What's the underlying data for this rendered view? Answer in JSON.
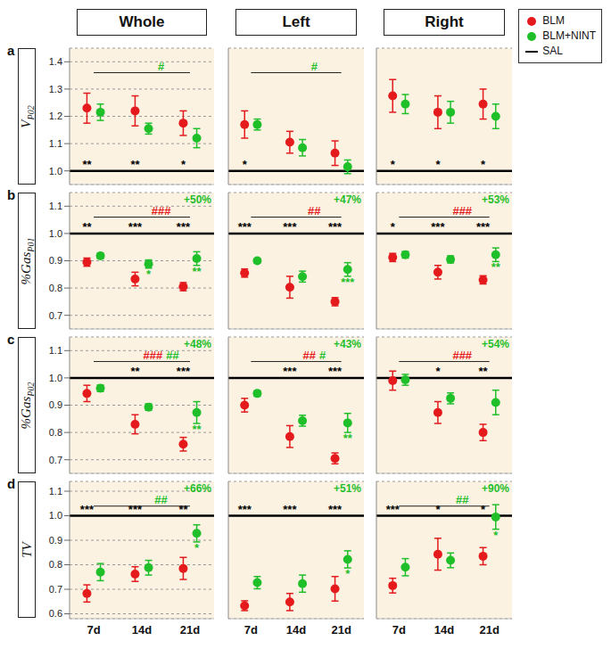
{
  "column_titles": [
    "Whole",
    "Left",
    "Right"
  ],
  "legend": "top right",
  "rows": [
    {
      "label": "a",
      "ylabel": "V",
      "ylabel_sub": "P02"
    },
    {
      "label": "b",
      "ylabel": "%Gas",
      "ylabel_sub": "P01"
    },
    {
      "label": "c",
      "ylabel": "%Gas",
      "ylabel_sub": "P02"
    },
    {
      "label": "d",
      "ylabel": "TV",
      "ylabel_sub": null
    }
  ],
  "chart_data": [
    {
      "type": "scatter",
      "categories": [
        "7d",
        "14d",
        "21d"
      ],
      "ylim": [
        0.95,
        1.45
      ],
      "yticks": [
        {
          "value": 1,
          "label": "1.0"
        },
        1.1,
        1.2,
        1.3,
        1.4
      ],
      "grid": true,
      "tick_labels": "y",
      "series": [
        {
          "name": "BLM",
          "color": "#e41a1c",
          "marker": "circle",
          "values": [
            1.23,
            1.22,
            1.175
          ],
          "errors": [
            0.055,
            0.055,
            0.045
          ]
        },
        {
          "name": "BLM+NINT",
          "color": "#1fbf2a",
          "marker": "circle",
          "values": [
            1.215,
            1.155,
            1.12
          ],
          "errors": [
            0.03,
            0.02,
            0.035
          ]
        }
      ],
      "reference": {
        "name": "SAL",
        "value": 1,
        "color": "#000000"
      },
      "sal_stars": [
        "**",
        "**",
        "*"
      ],
      "nint_stars": [
        null,
        null,
        null
      ],
      "comparison": {
        "from": "7d",
        "to": "21d",
        "labels": [
          {
            "text": "#",
            "color": "#1fbf2a"
          }
        ]
      },
      "change": null
    },
    {
      "type": "scatter",
      "categories": [
        "7d",
        "14d",
        "21d"
      ],
      "ylim": [
        0.95,
        1.45
      ],
      "yticks": [
        {
          "value": 1,
          "label": "1.0"
        },
        1.1,
        1.2,
        1.3,
        1.4
      ],
      "grid": true,
      "tick_labels": false,
      "series": [
        {
          "name": "BLM",
          "color": "#e41a1c",
          "marker": "circle",
          "values": [
            1.17,
            1.105,
            1.065
          ],
          "errors": [
            0.05,
            0.04,
            0.045
          ]
        },
        {
          "name": "BLM+NINT",
          "color": "#1fbf2a",
          "marker": "circle",
          "values": [
            1.17,
            1.085,
            1.015
          ],
          "errors": [
            0.02,
            0.03,
            0.025
          ]
        }
      ],
      "reference": {
        "name": "SAL",
        "value": 1,
        "color": "#000000"
      },
      "sal_stars": [
        "*",
        null,
        null
      ],
      "nint_stars": [
        null,
        null,
        null
      ],
      "comparison": {
        "from": "7d",
        "to": "21d",
        "labels": [
          {
            "text": "#",
            "color": "#1fbf2a"
          }
        ]
      },
      "change": null
    },
    {
      "type": "scatter",
      "categories": [
        "7d",
        "14d",
        "21d"
      ],
      "ylim": [
        0.95,
        1.45
      ],
      "yticks": [
        {
          "value": 1,
          "label": "1.0"
        },
        1.1,
        1.2,
        1.3,
        1.4
      ],
      "grid": true,
      "tick_labels": false,
      "series": [
        {
          "name": "BLM",
          "color": "#e41a1c",
          "marker": "circle",
          "values": [
            1.275,
            1.215,
            1.245
          ],
          "errors": [
            0.06,
            0.06,
            0.055
          ]
        },
        {
          "name": "BLM+NINT",
          "color": "#1fbf2a",
          "marker": "circle",
          "values": [
            1.245,
            1.215,
            1.2
          ],
          "errors": [
            0.035,
            0.04,
            0.045
          ]
        }
      ],
      "reference": {
        "name": "SAL",
        "value": 1,
        "color": "#000000"
      },
      "sal_stars": [
        "*",
        "*",
        "*"
      ],
      "nint_stars": [
        null,
        null,
        null
      ],
      "comparison": null,
      "change": null
    },
    {
      "type": "scatter",
      "categories": [
        "7d",
        "14d",
        "21d"
      ],
      "ylim": [
        0.65,
        1.15
      ],
      "yticks": [
        0.7,
        0.8,
        0.9,
        {
          "value": 1,
          "label": "1.0"
        },
        1.1
      ],
      "grid": true,
      "tick_labels": "y",
      "series": [
        {
          "name": "BLM",
          "color": "#e41a1c",
          "marker": "circle",
          "values": [
            0.895,
            0.833,
            0.805
          ],
          "errors": [
            0.015,
            0.025,
            0.015
          ]
        },
        {
          "name": "BLM+NINT",
          "color": "#1fbf2a",
          "marker": "circle",
          "values": [
            0.918,
            0.888,
            0.908
          ],
          "errors": [
            0.01,
            0.015,
            0.025
          ]
        }
      ],
      "reference": {
        "name": "SAL",
        "value": 1,
        "color": "#000000"
      },
      "sal_stars": [
        "**",
        "***",
        "***"
      ],
      "nint_stars": [
        null,
        "*",
        "**"
      ],
      "comparison": {
        "from": "7d",
        "to": "21d",
        "labels": [
          {
            "text": "###",
            "color": "#e41a1c"
          }
        ]
      },
      "change": {
        "text": "+50%",
        "color": "#1fbf2a"
      }
    },
    {
      "type": "scatter",
      "categories": [
        "7d",
        "14d",
        "21d"
      ],
      "ylim": [
        0.65,
        1.15
      ],
      "yticks": [
        0.7,
        0.8,
        0.9,
        {
          "value": 1,
          "label": "1.0"
        },
        1.1
      ],
      "grid": true,
      "tick_labels": false,
      "series": [
        {
          "name": "BLM",
          "color": "#e41a1c",
          "marker": "circle",
          "values": [
            0.855,
            0.803,
            0.75
          ],
          "errors": [
            0.015,
            0.04,
            0.015
          ]
        },
        {
          "name": "BLM+NINT",
          "color": "#1fbf2a",
          "marker": "circle",
          "values": [
            0.9,
            0.842,
            0.868
          ],
          "errors": [
            0.008,
            0.02,
            0.025
          ]
        }
      ],
      "reference": {
        "name": "SAL",
        "value": 1,
        "color": "#000000"
      },
      "sal_stars": [
        "***",
        "***",
        "***"
      ],
      "nint_stars": [
        null,
        null,
        "***"
      ],
      "comparison": {
        "from": "7d",
        "to": "21d",
        "labels": [
          {
            "text": "##",
            "color": "#e41a1c"
          }
        ]
      },
      "change": {
        "text": "+47%",
        "color": "#1fbf2a"
      }
    },
    {
      "type": "scatter",
      "categories": [
        "7d",
        "14d",
        "21d"
      ],
      "ylim": [
        0.65,
        1.15
      ],
      "yticks": [
        0.7,
        0.8,
        0.9,
        {
          "value": 1,
          "label": "1.0"
        },
        1.1
      ],
      "grid": true,
      "tick_labels": false,
      "series": [
        {
          "name": "BLM",
          "color": "#e41a1c",
          "marker": "circle",
          "values": [
            0.912,
            0.858,
            0.83
          ],
          "errors": [
            0.015,
            0.025,
            0.015
          ]
        },
        {
          "name": "BLM+NINT",
          "color": "#1fbf2a",
          "marker": "circle",
          "values": [
            0.922,
            0.905,
            0.922
          ],
          "errors": [
            0.012,
            0.013,
            0.025
          ]
        }
      ],
      "reference": {
        "name": "SAL",
        "value": 1,
        "color": "#000000"
      },
      "sal_stars": [
        "*",
        "***",
        "***"
      ],
      "nint_stars": [
        null,
        null,
        "**"
      ],
      "comparison": {
        "from": "7d",
        "to": "21d",
        "labels": [
          {
            "text": "###",
            "color": "#e41a1c"
          }
        ]
      },
      "change": {
        "text": "+53%",
        "color": "#1fbf2a"
      }
    },
    {
      "type": "scatter",
      "categories": [
        "7d",
        "14d",
        "21d"
      ],
      "ylim": [
        0.65,
        1.15
      ],
      "yticks": [
        0.7,
        0.8,
        0.9,
        {
          "value": 1,
          "label": "1.0"
        },
        1.1
      ],
      "grid": true,
      "tick_labels": "y",
      "series": [
        {
          "name": "BLM",
          "color": "#e41a1c",
          "marker": "circle",
          "values": [
            0.943,
            0.83,
            0.757
          ],
          "errors": [
            0.03,
            0.035,
            0.025
          ]
        },
        {
          "name": "BLM+NINT",
          "color": "#1fbf2a",
          "marker": "circle",
          "values": [
            0.962,
            0.893,
            0.873
          ],
          "errors": [
            0.012,
            0.012,
            0.04
          ]
        }
      ],
      "reference": {
        "name": "SAL",
        "value": 1,
        "color": "#000000"
      },
      "sal_stars": [
        null,
        "**",
        "***"
      ],
      "nint_stars": [
        null,
        null,
        "**"
      ],
      "comparison": {
        "from": "7d",
        "to": "21d",
        "labels": [
          {
            "text": "###",
            "color": "#e41a1c"
          },
          {
            "text": "##",
            "color": "#1fbf2a"
          }
        ]
      },
      "change": {
        "text": "+48%",
        "color": "#1fbf2a"
      }
    },
    {
      "type": "scatter",
      "categories": [
        "7d",
        "14d",
        "21d"
      ],
      "ylim": [
        0.65,
        1.15
      ],
      "yticks": [
        0.7,
        0.8,
        0.9,
        {
          "value": 1,
          "label": "1.0"
        },
        1.1
      ],
      "grid": true,
      "tick_labels": false,
      "series": [
        {
          "name": "BLM",
          "color": "#e41a1c",
          "marker": "circle",
          "values": [
            0.9,
            0.785,
            0.705
          ],
          "errors": [
            0.025,
            0.04,
            0.02
          ]
        },
        {
          "name": "BLM+NINT",
          "color": "#1fbf2a",
          "marker": "circle",
          "values": [
            0.943,
            0.843,
            0.835
          ],
          "errors": [
            0.01,
            0.02,
            0.035
          ]
        }
      ],
      "reference": {
        "name": "SAL",
        "value": 1,
        "color": "#000000"
      },
      "sal_stars": [
        null,
        "***",
        "***"
      ],
      "nint_stars": [
        null,
        null,
        "**"
      ],
      "comparison": {
        "from": "7d",
        "to": "21d",
        "labels": [
          {
            "text": "##",
            "color": "#e41a1c"
          },
          {
            "text": "#",
            "color": "#1fbf2a"
          }
        ]
      },
      "change": {
        "text": "+43%",
        "color": "#1fbf2a"
      }
    },
    {
      "type": "scatter",
      "categories": [
        "7d",
        "14d",
        "21d"
      ],
      "ylim": [
        0.65,
        1.15
      ],
      "yticks": [
        0.7,
        0.8,
        0.9,
        {
          "value": 1,
          "label": "1.0"
        },
        1.1
      ],
      "grid": true,
      "tick_labels": false,
      "series": [
        {
          "name": "BLM",
          "color": "#e41a1c",
          "marker": "circle",
          "values": [
            0.99,
            0.873,
            0.8
          ],
          "errors": [
            0.035,
            0.04,
            0.03
          ]
        },
        {
          "name": "BLM+NINT",
          "color": "#1fbf2a",
          "marker": "circle",
          "values": [
            0.993,
            0.925,
            0.91
          ],
          "errors": [
            0.02,
            0.02,
            0.045
          ]
        }
      ],
      "reference": {
        "name": "SAL",
        "value": 1,
        "color": "#000000"
      },
      "sal_stars": [
        null,
        "*",
        "**"
      ],
      "nint_stars": [
        null,
        null,
        null
      ],
      "comparison": {
        "from": "7d",
        "to": "21d",
        "labels": [
          {
            "text": "###",
            "color": "#e41a1c"
          }
        ]
      },
      "change": {
        "text": "+54%",
        "color": "#1fbf2a"
      }
    },
    {
      "type": "scatter",
      "categories": [
        "7d",
        "14d",
        "21d"
      ],
      "ylim": [
        0.58,
        1.14
      ],
      "yticks": [
        0.6,
        0.7,
        0.8,
        0.9,
        {
          "value": 1,
          "label": "1.0"
        },
        1.1
      ],
      "grid": true,
      "tick_labels": true,
      "series": [
        {
          "name": "BLM",
          "color": "#e41a1c",
          "marker": "circle",
          "values": [
            0.683,
            0.762,
            0.785
          ],
          "errors": [
            0.035,
            0.03,
            0.045
          ]
        },
        {
          "name": "BLM+NINT",
          "color": "#1fbf2a",
          "marker": "circle",
          "values": [
            0.77,
            0.788,
            0.928
          ],
          "errors": [
            0.035,
            0.03,
            0.035
          ]
        }
      ],
      "reference": {
        "name": "SAL",
        "value": 1,
        "color": "#000000"
      },
      "sal_stars": [
        "***",
        "***",
        "**"
      ],
      "nint_stars": [
        null,
        null,
        "*"
      ],
      "comparison": {
        "from": "7d",
        "to": "21d",
        "labels": [
          {
            "text": "##",
            "color": "#1fbf2a"
          }
        ]
      },
      "change": {
        "text": "+66%",
        "color": "#1fbf2a"
      }
    },
    {
      "type": "scatter",
      "categories": [
        "7d",
        "14d",
        "21d"
      ],
      "ylim": [
        0.58,
        1.14
      ],
      "yticks": [
        0.6,
        0.7,
        0.8,
        0.9,
        {
          "value": 1,
          "label": "1.0"
        },
        1.1
      ],
      "grid": true,
      "tick_labels": "x",
      "series": [
        {
          "name": "BLM",
          "color": "#e41a1c",
          "marker": "circle",
          "values": [
            0.633,
            0.648,
            0.702
          ],
          "errors": [
            0.02,
            0.035,
            0.05
          ]
        },
        {
          "name": "BLM+NINT",
          "color": "#1fbf2a",
          "marker": "circle",
          "values": [
            0.727,
            0.723,
            0.822
          ],
          "errors": [
            0.025,
            0.035,
            0.035
          ]
        }
      ],
      "reference": {
        "name": "SAL",
        "value": 1,
        "color": "#000000"
      },
      "sal_stars": [
        "***",
        "***",
        "***"
      ],
      "nint_stars": [
        null,
        null,
        "*"
      ],
      "comparison": null,
      "change": {
        "text": "+51%",
        "color": "#1fbf2a"
      }
    },
    {
      "type": "scatter",
      "categories": [
        "7d",
        "14d",
        "21d"
      ],
      "ylim": [
        0.58,
        1.14
      ],
      "yticks": [
        0.6,
        0.7,
        0.8,
        0.9,
        {
          "value": 1,
          "label": "1.0"
        },
        1.1
      ],
      "grid": true,
      "tick_labels": "x",
      "series": [
        {
          "name": "BLM",
          "color": "#e41a1c",
          "marker": "circle",
          "values": [
            0.715,
            0.843,
            0.835
          ],
          "errors": [
            0.03,
            0.065,
            0.035
          ]
        },
        {
          "name": "BLM+NINT",
          "color": "#1fbf2a",
          "marker": "circle",
          "values": [
            0.79,
            0.818,
            0.995
          ],
          "errors": [
            0.035,
            0.03,
            0.05
          ]
        }
      ],
      "reference": {
        "name": "SAL",
        "value": 1,
        "color": "#000000"
      },
      "sal_stars": [
        "***",
        "*",
        "*"
      ],
      "nint_stars": [
        null,
        null,
        "*"
      ],
      "comparison": {
        "from": "7d",
        "to": "21d",
        "labels": [
          {
            "text": "##",
            "color": "#1fbf2a"
          }
        ]
      },
      "change": {
        "text": "+90%",
        "color": "#1fbf2a"
      }
    }
  ]
}
